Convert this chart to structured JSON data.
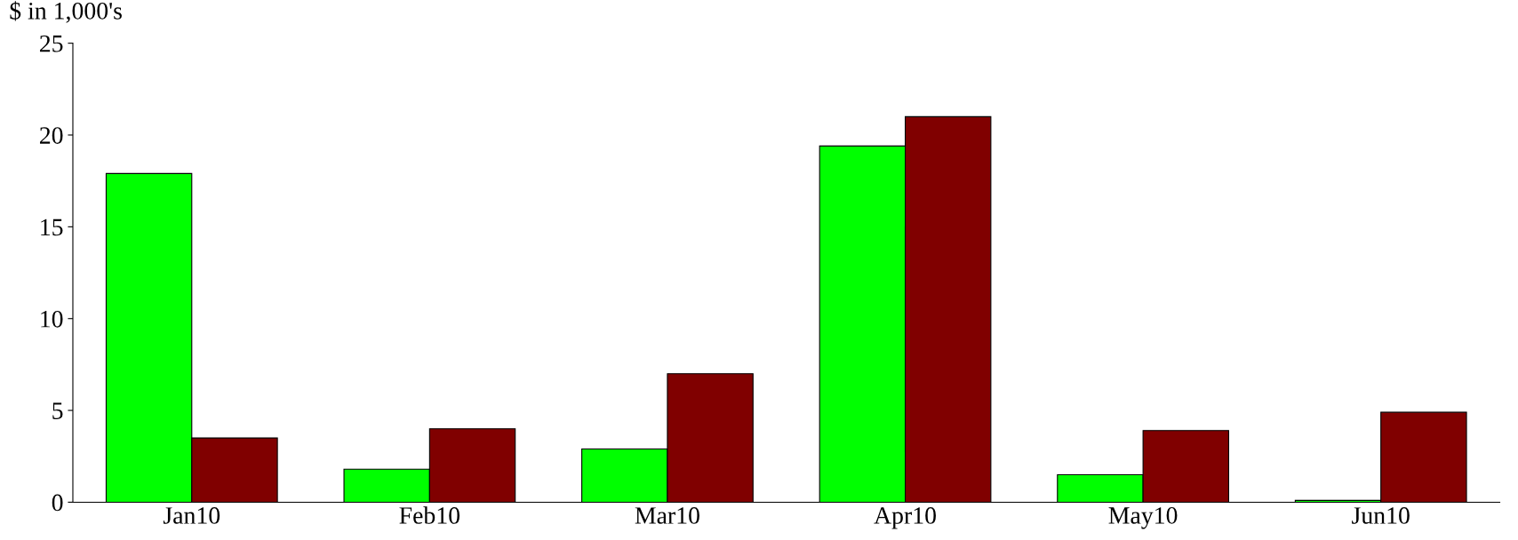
{
  "chart_data": {
    "type": "bar",
    "ylabel": "$ in 1,000's",
    "categories": [
      "Jan10",
      "Feb10",
      "Mar10",
      "Apr10",
      "May10",
      "Jun10"
    ],
    "series": [
      {
        "color": "#00ff00",
        "values": [
          17.9,
          1.8,
          2.9,
          19.4,
          1.5,
          0.1
        ]
      },
      {
        "color": "#800000",
        "values": [
          3.5,
          4.0,
          7.0,
          21.0,
          3.9,
          4.9
        ]
      }
    ],
    "ylim": [
      0,
      25
    ],
    "yticks": [
      0,
      5,
      10,
      15,
      20,
      25
    ],
    "grid": false
  }
}
